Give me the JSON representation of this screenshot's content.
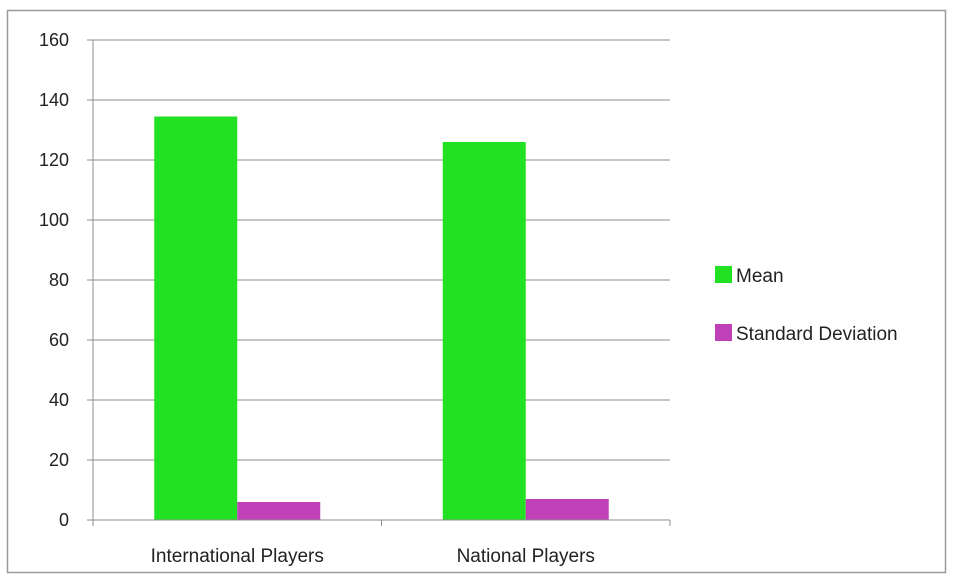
{
  "chart_data": {
    "type": "bar",
    "title": "",
    "xlabel": "",
    "ylabel": "",
    "categories": [
      "International Players",
      "National Players"
    ],
    "series": [
      {
        "name": "Mean",
        "color": "#22e022",
        "values": [
          134.5,
          126
        ]
      },
      {
        "name": "Standard Deviation",
        "color": "#c040b8",
        "values": [
          6,
          7
        ]
      }
    ],
    "ylim": [
      0,
      160
    ],
    "yticks": [
      0,
      20,
      40,
      60,
      80,
      100,
      120,
      140,
      160
    ],
    "grid": true,
    "legend_position": "right"
  }
}
